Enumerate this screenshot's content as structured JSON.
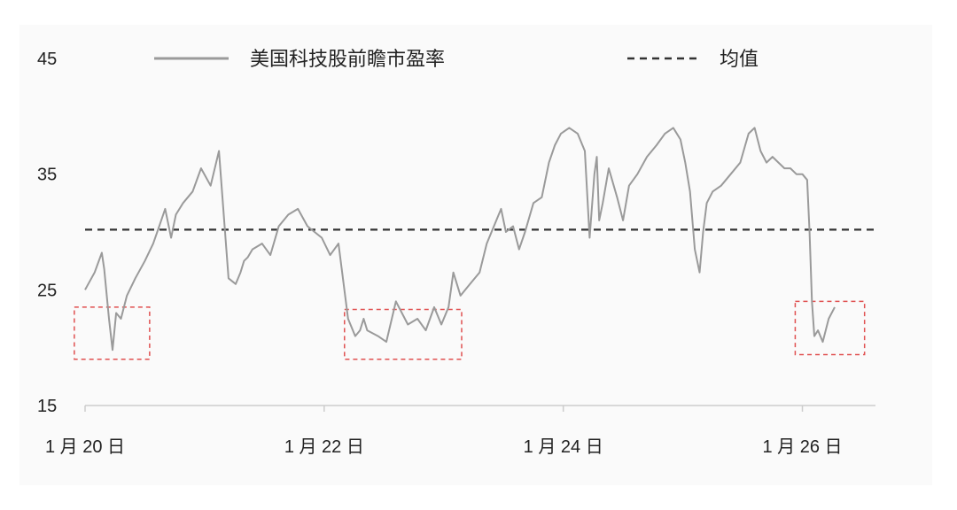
{
  "colors": {
    "series": "#9a9a9a",
    "mean_line": "#333333",
    "highlight": "#e05050",
    "axis": "#cccccc"
  },
  "chart_data": {
    "type": "line",
    "title": "",
    "xlabel": "",
    "ylabel": "",
    "ylim": [
      15,
      45
    ],
    "xlim": [
      0,
      6.3
    ],
    "yticks": [
      15,
      25,
      35,
      45
    ],
    "xticks": [
      {
        "x": 0,
        "label": "1 月 20 日"
      },
      {
        "x": 2,
        "label": "1 月 22 日"
      },
      {
        "x": 4,
        "label": "1 月 24 日"
      },
      {
        "x": 6,
        "label": "1 月 26 日"
      }
    ],
    "series": [
      {
        "name": "美国科技股前瞻市盈率",
        "x": [
          0.0,
          0.08,
          0.14,
          0.16,
          0.2,
          0.23,
          0.26,
          0.3,
          0.35,
          0.42,
          0.5,
          0.57,
          0.62,
          0.67,
          0.72,
          0.76,
          0.82,
          0.9,
          0.97,
          1.05,
          1.12,
          1.2,
          1.26,
          1.3,
          1.33,
          1.36,
          1.4,
          1.48,
          1.55,
          1.62,
          1.7,
          1.78,
          1.86,
          1.92,
          1.98,
          2.05,
          2.12,
          2.2,
          2.26,
          2.3,
          2.33,
          2.36,
          2.45,
          2.52,
          2.6,
          2.7,
          2.78,
          2.85,
          2.92,
          2.98,
          3.04,
          3.08,
          3.14,
          3.22,
          3.3,
          3.36,
          3.42,
          3.48,
          3.52,
          3.58,
          3.63,
          3.68,
          3.75,
          3.82,
          3.88,
          3.93,
          3.98,
          4.05,
          4.12,
          4.18,
          4.22,
          4.26,
          4.28,
          4.3,
          4.33,
          4.38,
          4.45,
          4.5,
          4.55,
          4.62,
          4.7,
          4.78,
          4.85,
          4.92,
          4.98,
          5.02,
          5.06,
          5.1,
          5.14,
          5.17,
          5.2,
          5.25,
          5.32,
          5.4,
          5.48,
          5.55,
          5.6,
          5.65,
          5.7,
          5.75,
          5.8,
          5.85,
          5.9,
          5.95,
          6.0,
          6.04,
          6.06,
          6.08,
          6.1,
          6.13,
          6.17,
          6.22,
          6.27
        ],
        "y": [
          25.0,
          26.5,
          28.2,
          26.8,
          22.5,
          19.8,
          23.0,
          22.5,
          24.5,
          26.0,
          27.5,
          29.0,
          30.5,
          32.0,
          29.5,
          31.5,
          32.5,
          33.5,
          35.5,
          34.0,
          37.0,
          26.0,
          25.5,
          26.5,
          27.5,
          27.8,
          28.5,
          29.0,
          28.0,
          30.5,
          31.5,
          32.0,
          30.5,
          30.0,
          29.5,
          28.0,
          29.0,
          22.5,
          21.0,
          21.5,
          22.5,
          21.5,
          21.0,
          20.5,
          24.0,
          22.0,
          22.5,
          21.5,
          23.5,
          22.0,
          23.5,
          26.5,
          24.5,
          25.5,
          26.5,
          29.0,
          30.5,
          32.0,
          30.0,
          30.5,
          28.5,
          30.0,
          32.5,
          33.0,
          36.0,
          37.5,
          38.5,
          39.0,
          38.5,
          37.0,
          29.5,
          35.0,
          36.5,
          31.0,
          32.5,
          35.5,
          33.0,
          31.0,
          34.0,
          35.0,
          36.5,
          37.5,
          38.5,
          39.0,
          38.0,
          36.0,
          33.5,
          28.5,
          26.5,
          30.0,
          32.5,
          33.5,
          34.0,
          35.0,
          36.0,
          38.5,
          39.0,
          37.0,
          36.0,
          36.5,
          36.0,
          35.5,
          35.5,
          35.0,
          35.0,
          34.5,
          30.0,
          24.0,
          21.0,
          21.5,
          20.5,
          22.5,
          23.5
        ]
      },
      {
        "name": "均值",
        "value": 30.2
      }
    ],
    "highlight_boxes": [
      {
        "x0": -0.09,
        "x1": 0.54,
        "y0": 19.0,
        "y1": 23.5
      },
      {
        "x0": 2.17,
        "x1": 3.15,
        "y0": 19.0,
        "y1": 23.3
      },
      {
        "x0": 5.94,
        "x1": 6.52,
        "y0": 19.4,
        "y1": 24.0
      }
    ],
    "grid": false,
    "legend_position": "top"
  }
}
